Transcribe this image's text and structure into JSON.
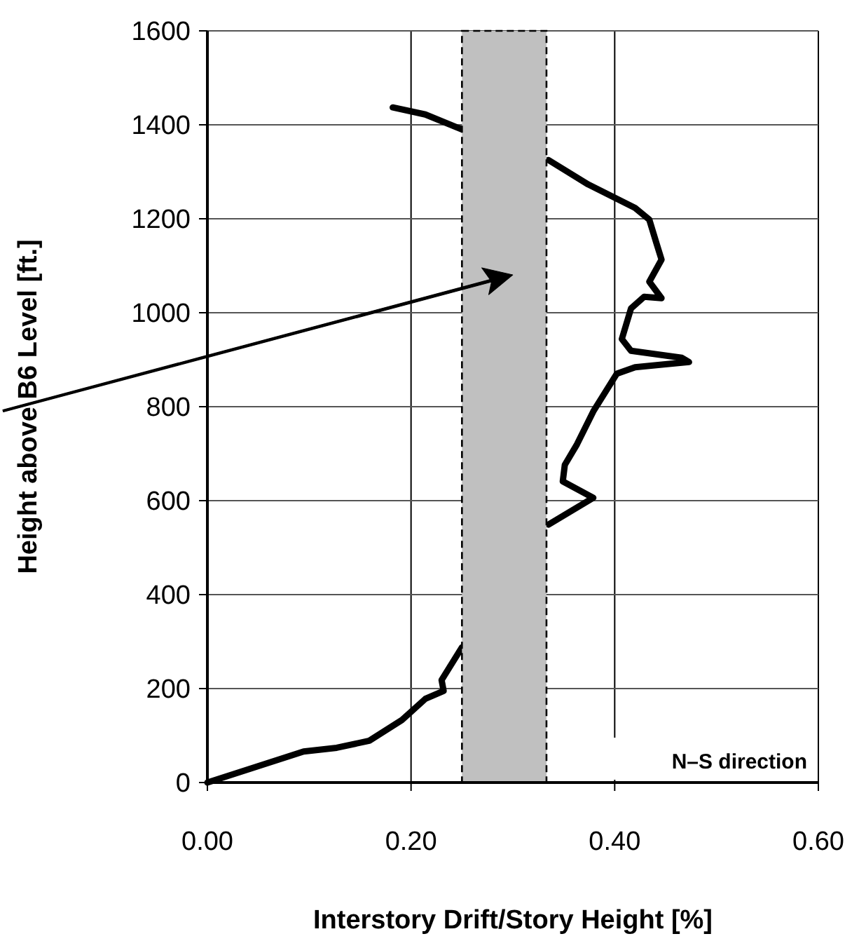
{
  "chart_data": {
    "type": "line",
    "xlabel": "Interstory Drift/Story Height [%]",
    "ylabel": "Height above B6 Level [ft.]",
    "xlim": [
      0,
      0.6
    ],
    "xticks": [
      {
        "value": 0,
        "label": "0.00"
      },
      {
        "value": 0.2,
        "label": "0.20"
      },
      {
        "value": 0.4,
        "label": "0.40"
      },
      {
        "value": 0.6,
        "label": "0.60"
      }
    ],
    "ylim": [
      0,
      1600
    ],
    "yticks": [
      0,
      200,
      400,
      600,
      800,
      1000,
      1200,
      1400,
      1600
    ],
    "grid": true,
    "marker": "none",
    "line_style": "solid",
    "bands": [
      {
        "axis": "x",
        "from": 0.25,
        "to": 0.333,
        "color": "#c0c0c0"
      }
    ],
    "annotations": [
      "N–S direction"
    ],
    "series": [
      {
        "color": "#000000",
        "x": [
          0,
          0.0945,
          0.127,
          0.159,
          0.191,
          0.214,
          0.232,
          0.23,
          0.25,
          0.29,
          0.335,
          0.379,
          0.349,
          0.351,
          0.363,
          0.379,
          0.402,
          0.42,
          0.448,
          0.473,
          0.466,
          0.416,
          0.407,
          0.416,
          0.429,
          0.446,
          0.434,
          0.446,
          0.441,
          0.434,
          0.42,
          0.374,
          0.335,
          0.29,
          0.25,
          0.214,
          0.182
        ],
        "values": [
          0,
          66,
          74,
          89,
          133,
          178,
          195,
          218,
          288,
          null,
          549,
          606,
          641,
          676,
          720,
          790,
          870,
          884,
          890,
          895,
          904,
          919,
          944,
          1009,
          1034,
          1031,
          1066,
          1113,
          1148,
          1198,
          1223,
          1273,
          1325,
          null,
          1390,
          1422,
          1437
        ]
      }
    ]
  }
}
